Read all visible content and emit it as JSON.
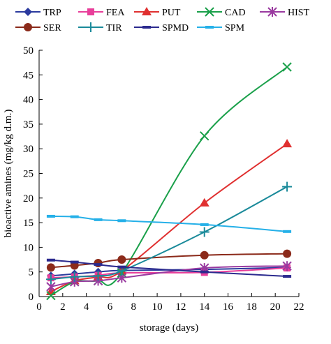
{
  "chart_data": {
    "type": "line",
    "title": "",
    "xlabel": "storage (days)",
    "ylabel": "bioactive amines (mg/kg d.m.)",
    "xlim": [
      0,
      22
    ],
    "ylim": [
      0,
      50
    ],
    "xticks": [
      0,
      2,
      4,
      6,
      8,
      10,
      12,
      14,
      16,
      18,
      20,
      22
    ],
    "yticks": [
      0,
      5,
      10,
      15,
      20,
      25,
      30,
      35,
      40,
      45,
      50
    ],
    "grid": false,
    "legend_position": "top",
    "x": [
      1,
      3,
      5,
      7,
      14,
      21
    ],
    "series": [
      {
        "name": "TRP",
        "color": "#2b3a9e",
        "marker": "diamond",
        "values": [
          4.2,
          4.6,
          5.0,
          5.3,
          5.5,
          5.9
        ]
      },
      {
        "name": "FEA",
        "color": "#e83e9a",
        "marker": "square",
        "values": [
          3.8,
          4.0,
          4.3,
          4.8,
          4.9,
          5.8
        ]
      },
      {
        "name": "PUT",
        "color": "#e03030",
        "marker": "triangle",
        "values": [
          1.0,
          3.2,
          4.0,
          5.2,
          19.0,
          31.0
        ]
      },
      {
        "name": "CAD",
        "color": "#1aa04a",
        "marker": "x",
        "values": [
          0.2,
          3.0,
          3.2,
          4.8,
          32.6,
          46.6
        ]
      },
      {
        "name": "HIST",
        "color": "#9a3aa0",
        "marker": "asterisk",
        "values": [
          2.0,
          3.0,
          3.2,
          3.8,
          5.8,
          6.2
        ]
      },
      {
        "name": "SER",
        "color": "#8b2a1a",
        "marker": "circle",
        "values": [
          5.9,
          6.3,
          6.8,
          7.5,
          8.4,
          8.7
        ]
      },
      {
        "name": "TIR",
        "color": "#1a8a9a",
        "marker": "plus",
        "values": [
          3.5,
          4.0,
          4.2,
          5.2,
          13.1,
          22.3
        ]
      },
      {
        "name": "SPMD",
        "color": "#2b2a8e",
        "marker": "dash",
        "values": [
          7.4,
          7.0,
          6.5,
          6.0,
          5.0,
          4.1
        ]
      },
      {
        "name": "SPM",
        "color": "#25b0e8",
        "marker": "dash",
        "values": [
          16.3,
          16.2,
          15.6,
          15.4,
          14.6,
          13.2
        ]
      }
    ]
  }
}
